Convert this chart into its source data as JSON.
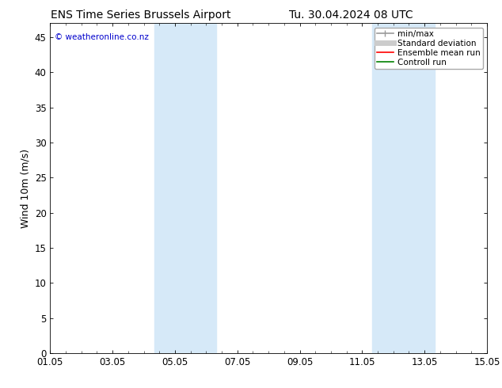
{
  "title_left": "ENS Time Series Brussels Airport",
  "title_right": "Tu. 30.04.2024 08 UTC",
  "ylabel": "Wind 10m (m/s)",
  "x_ticks_labels": [
    "01.05",
    "03.05",
    "05.05",
    "07.05",
    "09.05",
    "11.05",
    "13.05",
    "15.05"
  ],
  "x_ticks_positions": [
    0,
    2,
    4,
    6,
    8,
    10,
    12,
    14
  ],
  "ylim": [
    0,
    47
  ],
  "y_ticks": [
    0,
    5,
    10,
    15,
    20,
    25,
    30,
    35,
    40,
    45
  ],
  "shaded_bands": [
    {
      "xstart": 3.33,
      "xend": 4.0,
      "color": "#ddeeff"
    },
    {
      "xstart": 4.0,
      "xend": 5.33,
      "color": "#cce0f5"
    },
    {
      "xstart": 10.33,
      "xend": 11.0,
      "color": "#ddeeff"
    },
    {
      "xstart": 11.0,
      "xend": 12.33,
      "color": "#cce0f5"
    }
  ],
  "shaded_color": "#d6e9f8",
  "background_color": "#ffffff",
  "plot_bg_color": "#ffffff",
  "watermark_text": "© weatheronline.co.nz",
  "watermark_color": "#0000cc",
  "legend_entries": [
    {
      "label": "min/max",
      "color": "#999999",
      "lw": 1.2
    },
    {
      "label": "Standard deviation",
      "color": "#cccccc",
      "lw": 5
    },
    {
      "label": "Ensemble mean run",
      "color": "#ff0000",
      "lw": 1.2
    },
    {
      "label": "Controll run",
      "color": "#008000",
      "lw": 1.2
    }
  ],
  "tick_label_fontsize": 8.5,
  "axis_label_fontsize": 9,
  "title_fontsize": 10,
  "watermark_fontsize": 7.5
}
